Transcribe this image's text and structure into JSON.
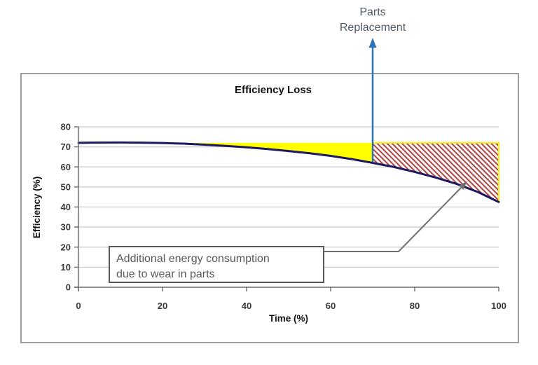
{
  "chart_data": {
    "type": "area",
    "title": "Efficiency Loss",
    "xlabel": "Time (%)",
    "ylabel": "Efficiency (%)",
    "xlim": [
      0,
      100
    ],
    "ylim": [
      0,
      80
    ],
    "x_ticks": [
      0,
      20,
      40,
      60,
      80,
      100
    ],
    "y_ticks": [
      0,
      10,
      20,
      30,
      40,
      50,
      60,
      70,
      80
    ],
    "grid": "horizontal",
    "legend": "none",
    "initial_efficiency": 72,
    "parts_replacement_time": 70,
    "series": [
      {
        "name": "efficiency-curve",
        "color": "#1a1a63",
        "points": [
          [
            0,
            72
          ],
          [
            5,
            72.15
          ],
          [
            10,
            72.2
          ],
          [
            15,
            72.1
          ],
          [
            20,
            71.9
          ],
          [
            25,
            71.6
          ],
          [
            30,
            71.1
          ],
          [
            35,
            70.5
          ],
          [
            40,
            69.8
          ],
          [
            45,
            68.9
          ],
          [
            50,
            67.9
          ],
          [
            55,
            66.8
          ],
          [
            60,
            65.5
          ],
          [
            65,
            63.9
          ],
          [
            70,
            62
          ],
          [
            75,
            60
          ],
          [
            80,
            57.5
          ],
          [
            85,
            54.7
          ],
          [
            90,
            51.5
          ],
          [
            95,
            47.5
          ],
          [
            100,
            42.5
          ]
        ]
      }
    ],
    "regions": [
      {
        "name": "efficiency-loss-before-replacement",
        "from": 0,
        "to": 70,
        "fill": "#ffff00",
        "style": "solid"
      },
      {
        "name": "efficiency-loss-after-replacement",
        "from": 70,
        "to": 100,
        "fill": "#ffffff",
        "hatch_color": "#b34745",
        "outline": "#ffee00",
        "style": "diagonal-hatch"
      }
    ]
  },
  "annotations": {
    "parts_replacement": {
      "line1": "Parts",
      "line2": "Replacement",
      "text_color": "#4e5a66",
      "arrow_color": "#2e74b5"
    },
    "energy_box": {
      "line1": "Additional energy consumption",
      "line2": "due to wear in parts",
      "text_color": "#595959",
      "border_color": "#55585c",
      "leader_color": "#6f6f6f"
    }
  }
}
